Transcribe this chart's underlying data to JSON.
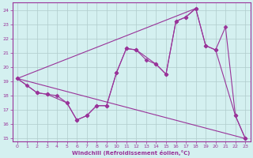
{
  "xlabel": "Windchill (Refroidissement éolien,°C)",
  "background_color": "#d4f0f0",
  "line_color": "#993399",
  "grid_color": "#b0cccc",
  "xlim": [
    -0.5,
    23.5
  ],
  "ylim": [
    14.8,
    24.5
  ],
  "yticks": [
    15,
    16,
    17,
    18,
    19,
    20,
    21,
    22,
    23,
    24
  ],
  "xticks": [
    0,
    1,
    2,
    3,
    4,
    5,
    6,
    7,
    8,
    9,
    10,
    11,
    12,
    13,
    14,
    15,
    16,
    17,
    18,
    19,
    20,
    21,
    22,
    23
  ],
  "curve1_x": [
    0,
    1,
    2,
    3,
    4,
    5,
    6,
    7,
    8,
    9,
    10,
    11,
    12,
    13,
    14,
    15,
    16,
    17,
    18,
    19,
    20,
    21,
    22,
    23
  ],
  "curve1_y": [
    19.2,
    18.7,
    18.2,
    18.1,
    18.0,
    17.5,
    16.3,
    16.6,
    17.3,
    17.3,
    19.6,
    21.3,
    21.2,
    20.5,
    20.2,
    19.5,
    23.2,
    23.5,
    24.1,
    21.5,
    21.2,
    22.8,
    16.6,
    15.0
  ],
  "curve2_x": [
    0,
    2,
    3,
    5,
    6,
    7,
    8,
    9,
    10,
    11,
    12,
    14,
    15,
    16,
    17,
    18,
    19,
    20,
    22,
    23
  ],
  "curve2_y": [
    19.2,
    18.2,
    18.1,
    17.5,
    16.3,
    16.6,
    17.3,
    17.3,
    19.6,
    21.3,
    21.2,
    20.2,
    19.5,
    23.2,
    23.5,
    24.1,
    21.5,
    21.2,
    16.6,
    15.0
  ],
  "line1_x": [
    0,
    18
  ],
  "line1_y": [
    19.2,
    24.1
  ],
  "line2_x": [
    0,
    23
  ],
  "line2_y": [
    19.2,
    15.0
  ]
}
